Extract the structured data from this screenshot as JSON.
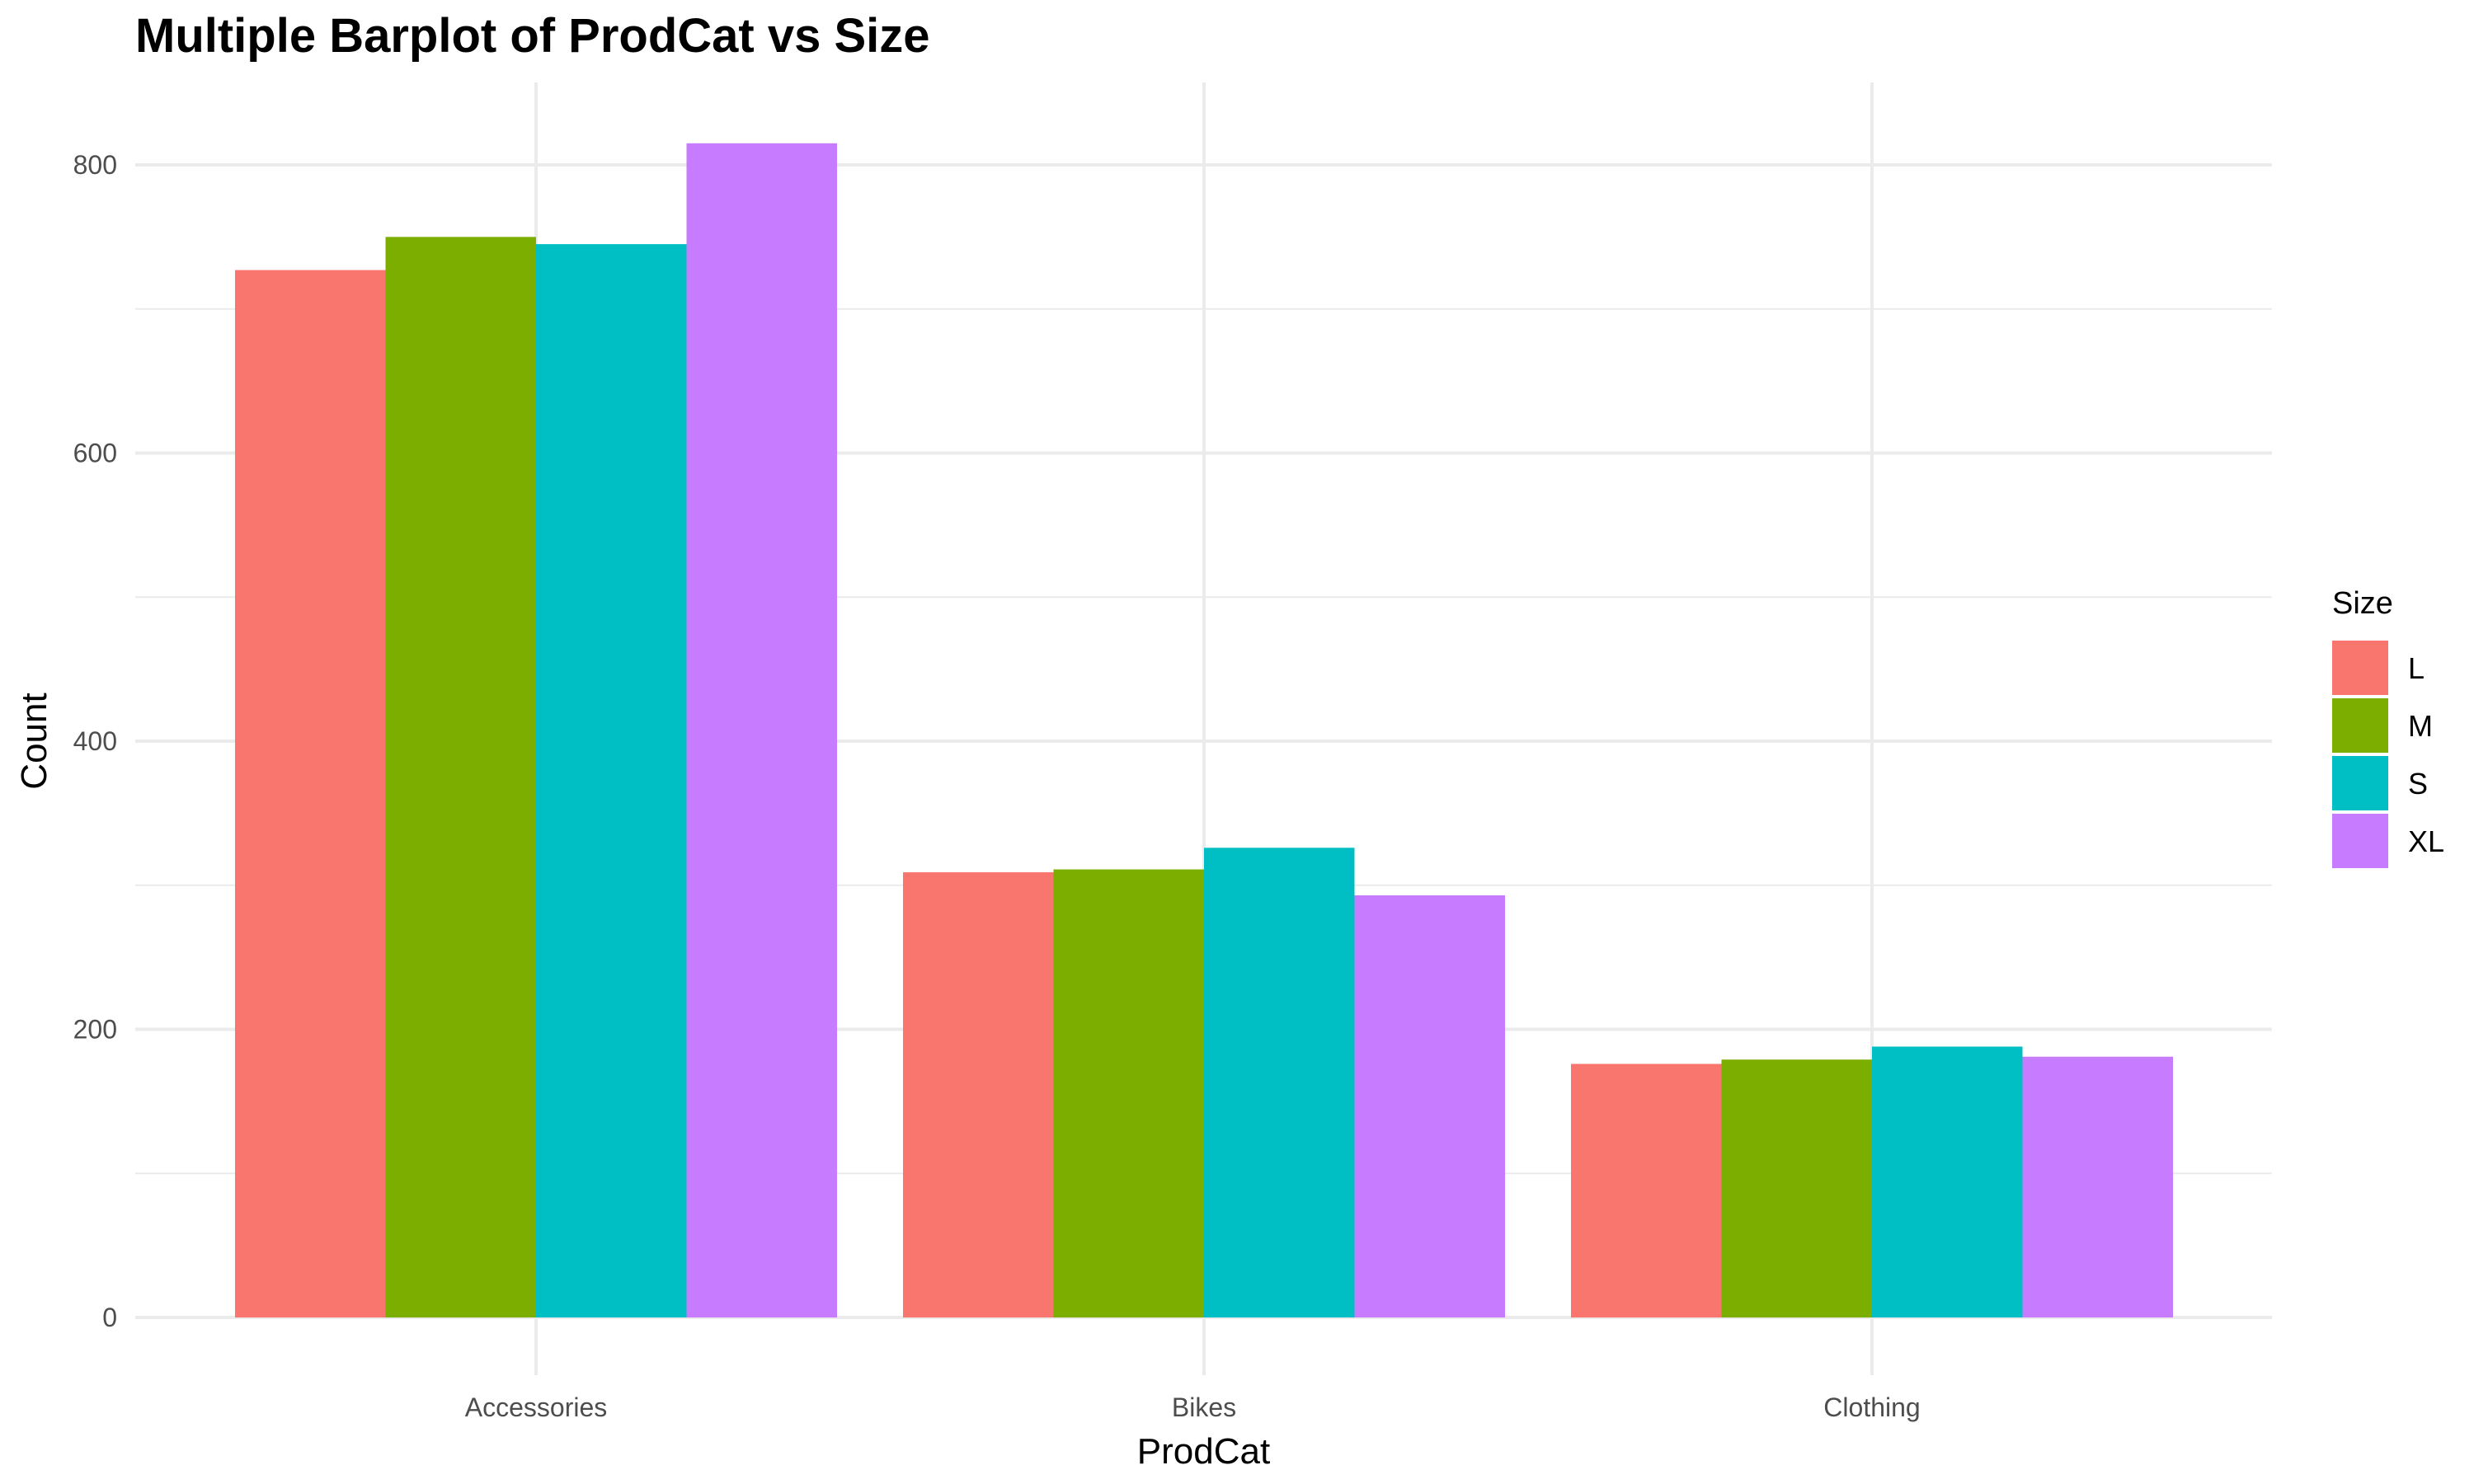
{
  "chart_data": {
    "type": "bar",
    "title": "Multiple Barplot of ProdCat vs Size",
    "xlabel": "ProdCat",
    "ylabel": "Count",
    "categories": [
      "Accessories",
      "Bikes",
      "Clothing"
    ],
    "legend_title": "Size",
    "legend_position": "right",
    "grid": true,
    "ylim": [
      0,
      850
    ],
    "yticks": [
      0,
      200,
      400,
      600,
      800
    ],
    "series": [
      {
        "name": "L",
        "color": "#F8766D",
        "values": [
          727,
          309,
          176
        ]
      },
      {
        "name": "M",
        "color": "#7CAE00",
        "values": [
          750,
          311,
          179
        ]
      },
      {
        "name": "S",
        "color": "#00BFC4",
        "values": [
          745,
          326,
          188
        ]
      },
      {
        "name": "XL",
        "color": "#C77CFF",
        "values": [
          815,
          293,
          181
        ]
      }
    ]
  }
}
